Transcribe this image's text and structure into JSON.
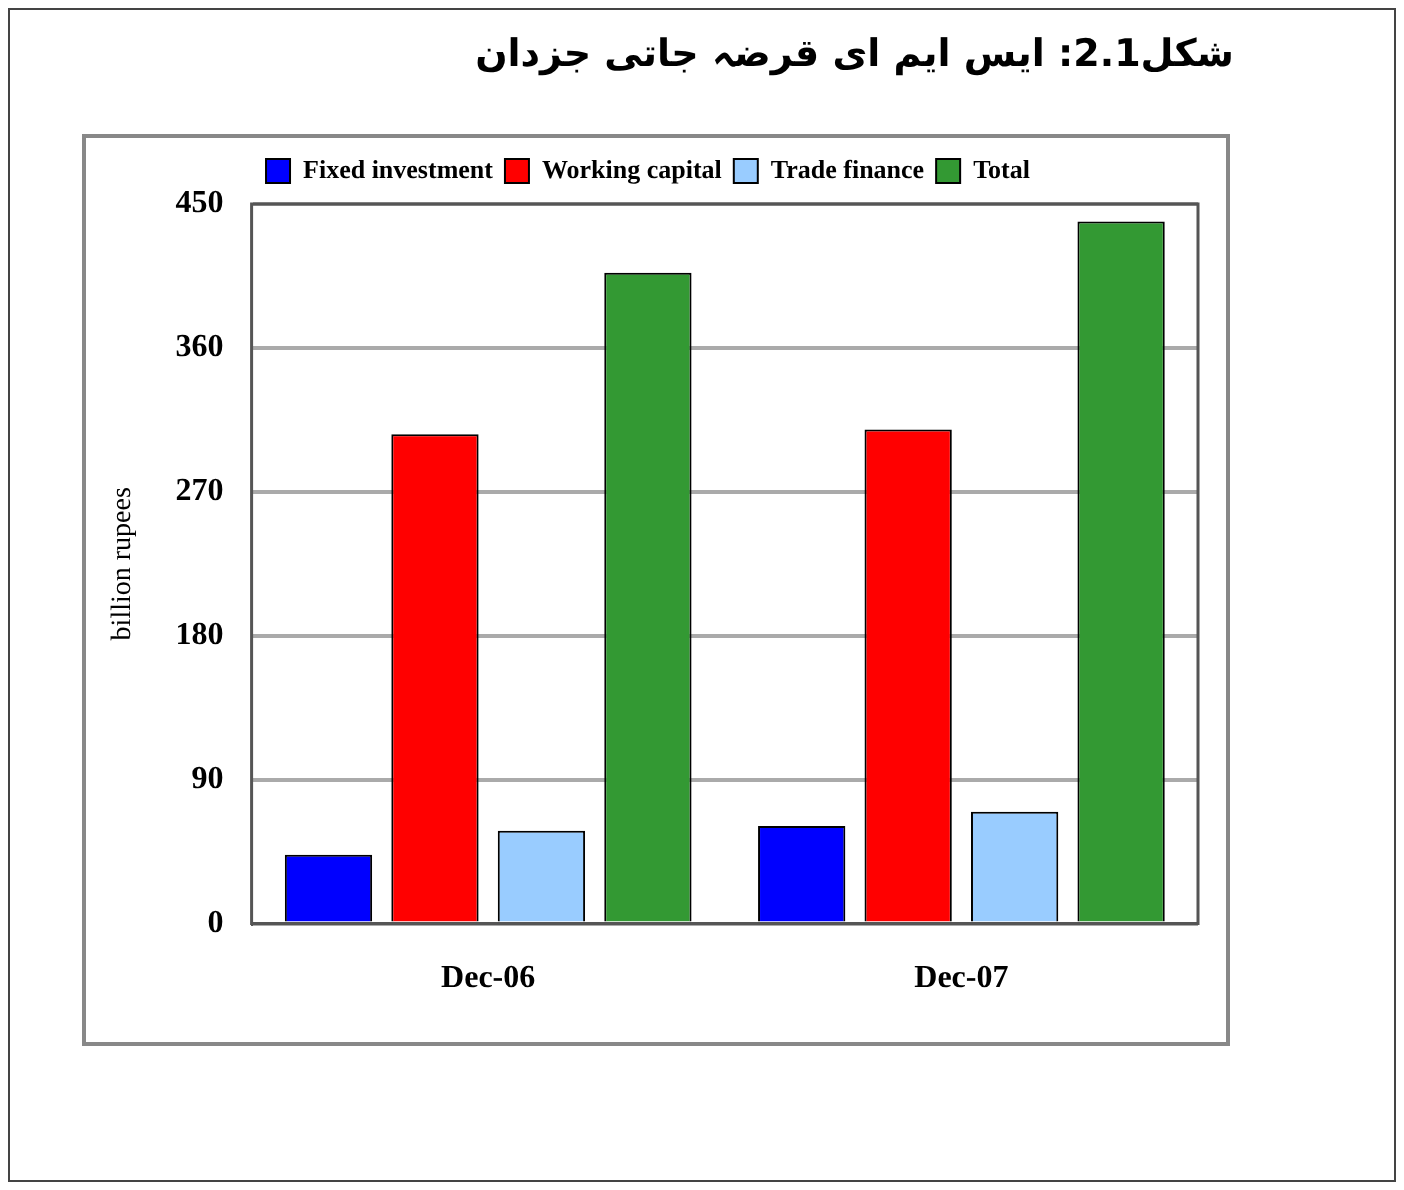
{
  "chart_data": {
    "type": "bar",
    "title": "شکل2.1: ایس ایم ای قرضہ جاتی جزدان",
    "ylabel": "billion rupees",
    "categories": [
      "Dec-06",
      "Dec-07"
    ],
    "series": [
      {
        "name": "Fixed investment",
        "color": "#0000ff",
        "values": [
          43,
          61
        ]
      },
      {
        "name": "Working capital",
        "color": "#ff0000",
        "values": [
          306,
          309
        ]
      },
      {
        "name": "Trade finance",
        "color": "#99ccff",
        "values": [
          58,
          70
        ]
      },
      {
        "name": "Total",
        "color": "#339933",
        "values": [
          407,
          439
        ]
      }
    ],
    "ylim": [
      0,
      450
    ],
    "yticks": [
      0,
      90,
      180,
      270,
      360,
      450
    ],
    "grid": "y",
    "legend": "top"
  }
}
